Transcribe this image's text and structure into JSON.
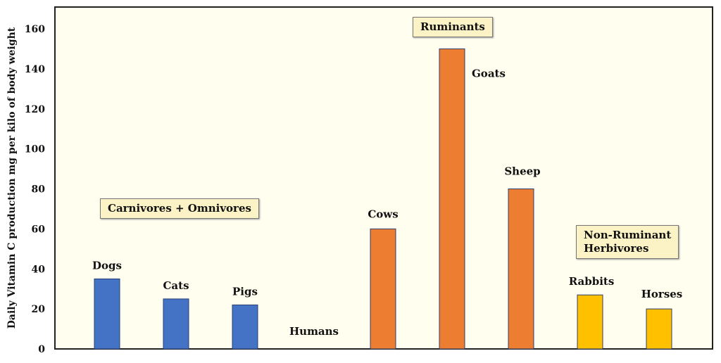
{
  "chart_data": {
    "type": "bar",
    "title": "",
    "xlabel": "",
    "ylabel": "Daily Vitamin C production mg per kilo of body weight",
    "ylim": [
      0,
      170
    ],
    "yticks": [
      "0",
      "20",
      "40",
      "60",
      "80",
      "100",
      "120",
      "140",
      "160"
    ],
    "grid": false,
    "categories": [
      "Dogs",
      "Cats",
      "Pigs",
      "Humans",
      "Cows",
      "Goats",
      "Sheep",
      "Rabbits",
      "Horses"
    ],
    "values": [
      35,
      25,
      22,
      0,
      60,
      150,
      80,
      27,
      20
    ],
    "bar_colors": [
      "#4472C4",
      "#4472C4",
      "#4472C4",
      "#4472C4",
      "#ED7D31",
      "#ED7D31",
      "#ED7D31",
      "#FFC000",
      "#FFC000"
    ],
    "annotations": [
      {
        "text": "Carnivores + Omnivores",
        "color": "#4472C4"
      },
      {
        "text": "Ruminants",
        "color": "#ED7D31"
      },
      {
        "text": "Non-Ruminant Herbivores",
        "line1": "Non-Ruminant",
        "line2": "Herbivores",
        "color": "#FFC000"
      }
    ],
    "background": "#FFFEEF"
  }
}
